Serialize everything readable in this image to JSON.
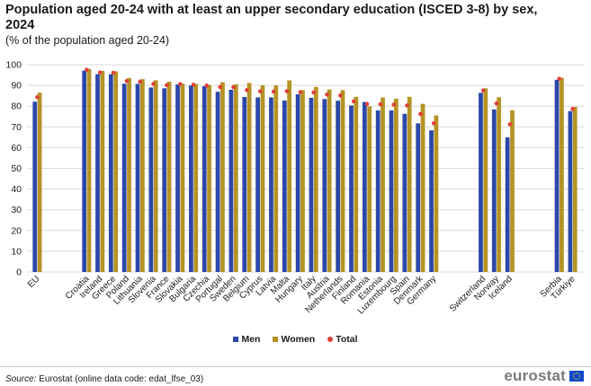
{
  "header": {
    "title": "Population aged 20-24 with at least an upper secondary education (ISCED 3-8) by sex, 2024",
    "subtitle": "(% of the population aged 20-24)"
  },
  "legend": {
    "men": "Men",
    "women": "Women",
    "total": "Total"
  },
  "footer": {
    "source_label": "Source:",
    "source_text": " Eurostat (online data code: edat_lfse_03)",
    "logo_text": "eurostat"
  },
  "colors": {
    "men": "#2b47a8",
    "women": "#b59325",
    "total": "#e0403a",
    "grid": "#d9d9d9"
  },
  "chart_data": {
    "type": "bar",
    "title": "Population aged 20-24 with at least an upper secondary education (ISCED 3-8) by sex, 2024",
    "subtitle": "(% of the population aged 20-24)",
    "ylim": [
      0,
      100
    ],
    "yticks": [
      0,
      10,
      20,
      30,
      40,
      50,
      60,
      70,
      80,
      90,
      100
    ],
    "grid": true,
    "legend_position": "bottom",
    "groups": [
      [
        "EU"
      ],
      [
        "Croatia",
        "Ireland",
        "Greece",
        "Poland",
        "Lithuania",
        "Slovenia",
        "France",
        "Slovakia",
        "Bulgaria",
        "Czechia",
        "Portugal",
        "Sweden",
        "Belgium",
        "Cyprus",
        "Latvia",
        "Malta",
        "Hungary",
        "Italy",
        "Austria",
        "Netherlands",
        "Finland",
        "Romania",
        "Estonia",
        "Luxembourg",
        "Spain",
        "Denmark",
        "Germany"
      ],
      [
        "Switzerland",
        "Norway",
        "Iceland"
      ],
      [
        "Serbia",
        "Türkiye"
      ]
    ],
    "categories": [
      "EU",
      "Croatia",
      "Ireland",
      "Greece",
      "Poland",
      "Lithuania",
      "Slovenia",
      "France",
      "Slovakia",
      "Bulgaria",
      "Czechia",
      "Portugal",
      "Sweden",
      "Belgium",
      "Cyprus",
      "Latvia",
      "Malta",
      "Hungary",
      "Italy",
      "Austria",
      "Netherlands",
      "Finland",
      "Romania",
      "Estonia",
      "Luxembourg",
      "Spain",
      "Denmark",
      "Germany",
      "Switzerland",
      "Norway",
      "Iceland",
      "Serbia",
      "Türkiye"
    ],
    "series": [
      {
        "name": "Men",
        "values": [
          82.1,
          97.1,
          95.4,
          95.4,
          90.8,
          90.7,
          89.0,
          88.6,
          90.4,
          89.9,
          89.6,
          86.9,
          87.9,
          84.4,
          84.2,
          84.2,
          82.7,
          85.7,
          84.0,
          83.4,
          82.6,
          80.3,
          82.0,
          77.9,
          77.9,
          76.3,
          71.7,
          68.3,
          86.4,
          78.4,
          64.9,
          92.7,
          77.6
        ]
      },
      {
        "name": "Women",
        "values": [
          86.5,
          97.9,
          97.0,
          96.8,
          93.6,
          93.0,
          92.5,
          91.8,
          90.8,
          90.7,
          90.2,
          91.5,
          90.5,
          91.2,
          90.0,
          90.0,
          92.4,
          87.7,
          89.3,
          88.0,
          87.7,
          84.5,
          79.9,
          84.2,
          83.6,
          84.5,
          81.1,
          75.5,
          88.6,
          84.3,
          78.0,
          93.7,
          79.6
        ]
      },
      {
        "name": "Total",
        "values": [
          84.3,
          97.5,
          96.2,
          96.1,
          92.1,
          91.8,
          90.7,
          90.1,
          90.6,
          90.3,
          89.9,
          89.2,
          89.1,
          87.7,
          87.1,
          87.0,
          87.2,
          86.7,
          86.6,
          85.6,
          85.1,
          82.3,
          81.0,
          80.9,
          80.7,
          80.3,
          76.2,
          71.7,
          87.5,
          81.3,
          71.2,
          93.2,
          78.6
        ]
      }
    ]
  }
}
